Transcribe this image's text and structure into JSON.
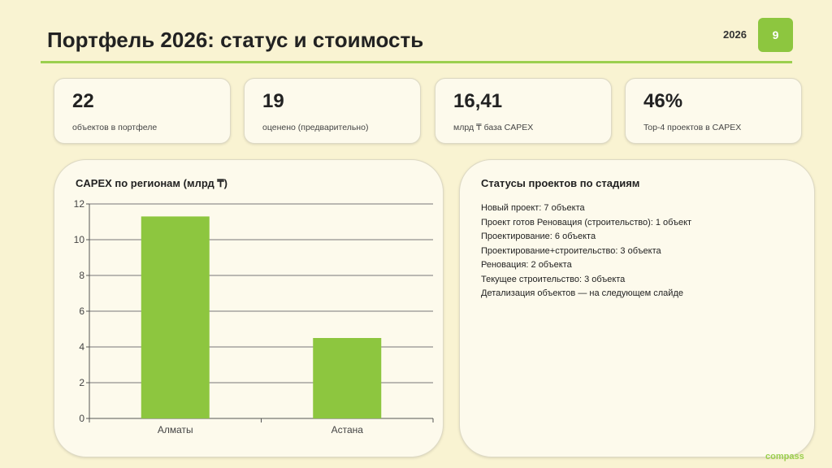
{
  "header": {
    "title": "Портфель 2026: статус и стоимость",
    "year": "2026",
    "page_number": "9"
  },
  "kpis": [
    {
      "value": "22",
      "label": "объектов в портфеле"
    },
    {
      "value": "19",
      "label": "оценено (предварительно)"
    },
    {
      "value": "16,41",
      "label": "млрд ₸ база CAPEX"
    },
    {
      "value": "46%",
      "label": "Top-4 проектов в CAPEX"
    }
  ],
  "chart_panel": {
    "title": "CAPEX по регионам (млрд ₸)"
  },
  "chart_data": {
    "type": "bar",
    "categories": [
      "Алматы",
      "Астана"
    ],
    "values": [
      11.3,
      4.5
    ],
    "ylim": [
      0,
      12
    ],
    "yticks": [
      0,
      2,
      4,
      6,
      8,
      10,
      12
    ],
    "grid": true,
    "color": "#8dc63f",
    "title": "CAPEX по регионам (млрд ₸)"
  },
  "status_panel": {
    "title": "Статусы проектов по стадиям",
    "items": [
      "Новый проект: 7 объекта",
      "Проект готов Реновация (строительство): 1 объект",
      "Проектирование: 6 объекта",
      "Проектирование+строительство: 3 объекта",
      "Реновация: 2 объекта",
      "Текущее строительство: 3 объекта",
      "Детализация объектов — на следующем слайде"
    ]
  },
  "footer": {
    "brand": "compass"
  },
  "colors": {
    "background": "#f9f3d2",
    "accent": "#8dc63f"
  }
}
